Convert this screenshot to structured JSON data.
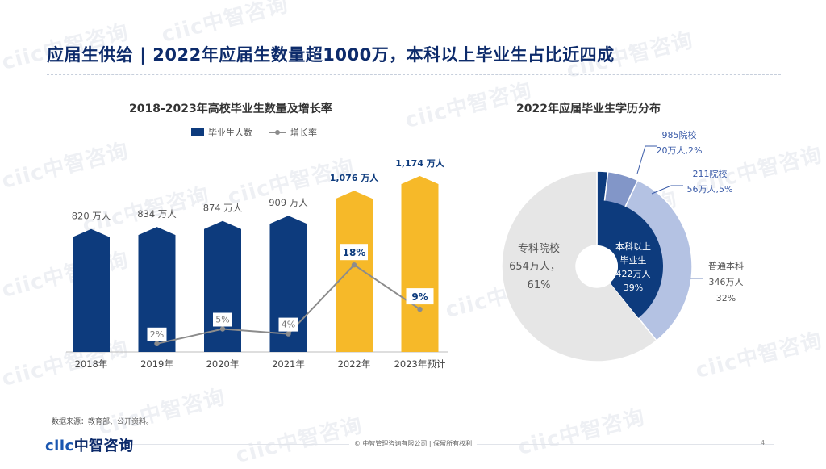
{
  "title": "应届生供给 | 2022年应届生数量超1000万，本科以上毕业生占比近四成",
  "watermark": "ciic中智咨询",
  "bar_chart_title": "2018-2023年高校毕业生数量及增长率",
  "pie_chart_title": "2022年应届毕业生学历分布",
  "source": "数据来源：教育部、公开资料。",
  "footer": "© 中智管理咨询有限公司 | 保留所有权利",
  "page_number": "4",
  "logo": {
    "a": "ciic",
    "b": "中智咨询"
  },
  "colors": {
    "navy": "#0d3b7d",
    "gold": "#f6b929",
    "line": "#8c8c8c",
    "light_gray": "#e6e6e6",
    "pale_blue": "#b4c2e3",
    "mid_blue": "#8296c8"
  },
  "chart_data": [
    {
      "type": "bar",
      "title": "2018-2023年高校毕业生数量及增长率",
      "categories": [
        "2018年",
        "2019年",
        "2020年",
        "2021年",
        "2022年",
        "2023年预计"
      ],
      "series": [
        {
          "name": "毕业生人数",
          "type": "bar",
          "values": [
            820,
            834,
            874,
            909,
            1076,
            1174
          ],
          "labels": [
            "820 万人",
            "834 万人",
            "874 万人",
            "909 万人",
            "1,076 万人",
            "1,174 万人"
          ],
          "highlight": [
            false,
            false,
            false,
            false,
            true,
            true
          ]
        },
        {
          "name": "增长率",
          "type": "line",
          "values": [
            null,
            2,
            5,
            4,
            18,
            9
          ],
          "labels": [
            "",
            "2%",
            "5%",
            "4%",
            "18%",
            "9%"
          ]
        }
      ],
      "ylim": [
        0,
        1300
      ],
      "line_ylim": [
        0,
        20
      ],
      "legend": "top-center"
    },
    {
      "type": "pie",
      "title": "2022年应届毕业生学历分布",
      "slices": [
        {
          "name": "985院校",
          "value": 20,
          "label": "985院校",
          "value_label": "20万人,2%"
        },
        {
          "name": "211院校",
          "value": 56,
          "label": "211院校",
          "value_label": "56万人,5%"
        },
        {
          "name": "普通本科",
          "value": 346,
          "label": "普通本科",
          "value_label": "346万人",
          "pct_label": "32%"
        },
        {
          "name": "专科院校",
          "value": 654,
          "label": "专科院校",
          "value_label": "654万人，",
          "pct_label": "61%"
        }
      ],
      "inner": {
        "name": "本科以上毕业生",
        "value": 422,
        "lines": [
          "本科以上",
          "毕业生",
          "422万人",
          "39%"
        ]
      }
    }
  ]
}
